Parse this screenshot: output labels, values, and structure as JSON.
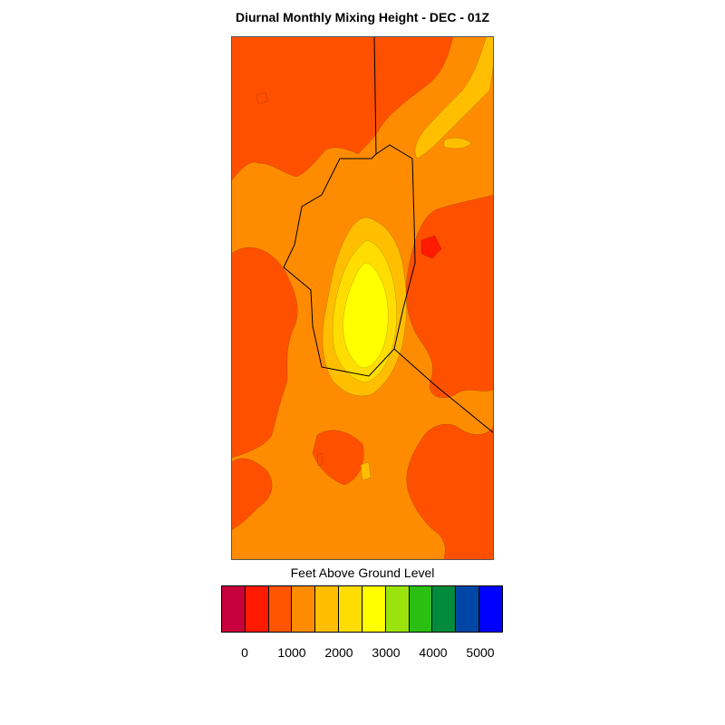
{
  "title": "Diurnal Monthly Mixing Height - DEC - 01Z",
  "legend": {
    "title": "Feet Above Ground Level",
    "colors": [
      "#c8003c",
      "#ff1a00",
      "#ff5500",
      "#ff8c00",
      "#ffbf00",
      "#ffdd00",
      "#ffff00",
      "#9be30c",
      "#2bbf13",
      "#008a3b",
      "#0046a6",
      "#0000ff"
    ],
    "tick_labels": [
      "0",
      "1000",
      "2000",
      "3000",
      "4000",
      "5000"
    ]
  },
  "map": {
    "field_colors": {
      "low": "#ff5000",
      "base": "#ff8c00",
      "mid": "#ffbf00",
      "upper": "#ffdd00",
      "peak": "#ffff00",
      "min": "#ff1a00"
    },
    "boundary_color": "#000000"
  }
}
